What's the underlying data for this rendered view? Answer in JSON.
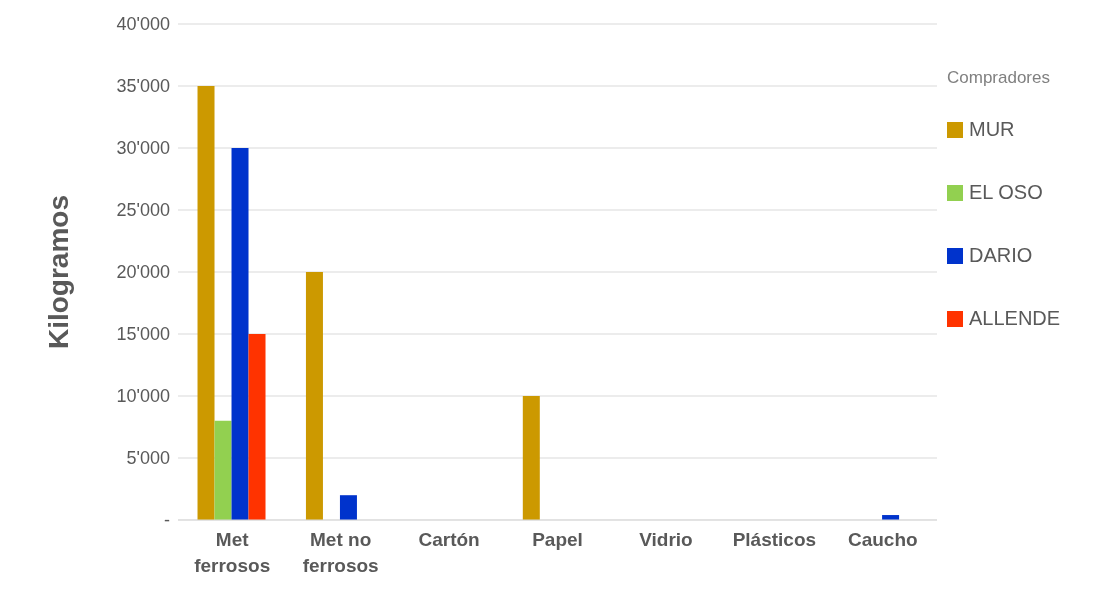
{
  "chart_data": {
    "type": "bar",
    "ylabel": "Kilogramos",
    "legend_title": "Compradores",
    "legend": "right",
    "categories": [
      "Met ferrosos",
      "Met no ferrosos",
      "Cartón",
      "Papel",
      "Vidrio",
      "Plásticos",
      "Caucho"
    ],
    "series": [
      {
        "name": "MUR",
        "color": "#cc9900",
        "values": [
          35000,
          20000,
          null,
          10000,
          null,
          null,
          null
        ]
      },
      {
        "name": "EL OSO",
        "color": "#92d050",
        "values": [
          8000,
          null,
          null,
          null,
          null,
          null,
          null
        ]
      },
      {
        "name": "DARIO",
        "color": "#0033cc",
        "values": [
          30000,
          2000,
          null,
          null,
          null,
          null,
          400
        ]
      },
      {
        "name": "ALLENDE",
        "color": "#ff3300",
        "values": [
          15000,
          null,
          null,
          null,
          null,
          null,
          null
        ]
      }
    ],
    "ylim": [
      0,
      40000
    ],
    "yticks": [
      {
        "value": 0,
        "label": "-"
      },
      {
        "value": 5000,
        "label": "5'000"
      },
      {
        "value": 10000,
        "label": "10'000"
      },
      {
        "value": 15000,
        "label": "15'000"
      },
      {
        "value": 20000,
        "label": "20'000"
      },
      {
        "value": 25000,
        "label": "25'000"
      },
      {
        "value": 30000,
        "label": "30'000"
      },
      {
        "value": 35000,
        "label": "35'000"
      },
      {
        "value": 40000,
        "label": "40'000"
      }
    ],
    "grid": "y"
  }
}
